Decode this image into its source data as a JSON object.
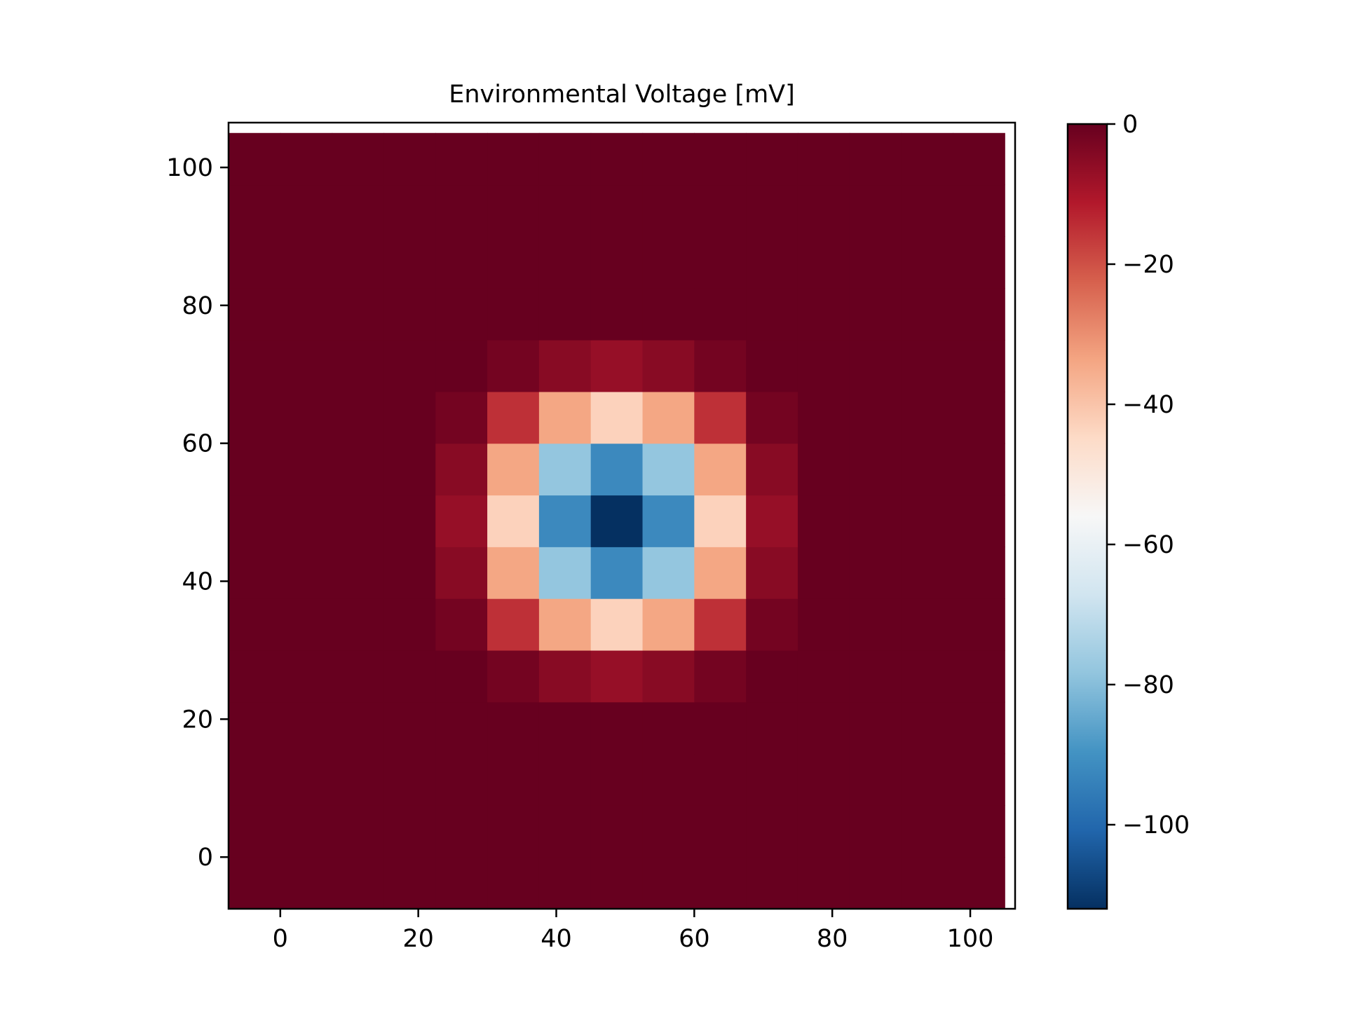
{
  "chart_data": {
    "type": "heatmap",
    "title": "Environmental Voltage [mV]",
    "xlabel": "",
    "ylabel": "",
    "xlim": [
      -7.5,
      106.5
    ],
    "ylim": [
      -7.5,
      106.5
    ],
    "x_ticks": [
      "0",
      "20",
      "40",
      "60",
      "80",
      "100"
    ],
    "y_ticks": [
      "0",
      "20",
      "40",
      "60",
      "80",
      "100"
    ],
    "x_tick_values": [
      0,
      20,
      40,
      60,
      80,
      100
    ],
    "y_tick_values": [
      0,
      20,
      40,
      60,
      80,
      100
    ],
    "cell_centers": [
      -3.75,
      3.75,
      11.25,
      18.75,
      26.25,
      33.75,
      41.25,
      48.75,
      56.25,
      63.75,
      71.25,
      78.75,
      86.25,
      93.75,
      101.25
    ],
    "cell_width": 7.5,
    "grid_rows_from_bottom": [
      [
        0,
        0,
        0,
        0,
        0,
        0,
        0,
        0,
        0,
        0,
        0,
        0,
        0,
        0,
        0
      ],
      [
        0,
        0,
        0,
        0,
        0,
        0,
        0,
        0,
        0,
        0,
        0,
        0,
        0,
        0,
        0
      ],
      [
        0,
        0,
        0,
        0,
        0,
        0,
        0,
        0,
        0,
        0,
        0,
        0,
        0,
        0,
        0
      ],
      [
        0,
        0,
        0,
        0,
        0,
        0,
        0,
        0,
        0,
        0,
        0,
        0,
        0,
        0,
        0
      ],
      [
        0,
        0,
        0,
        0,
        0,
        -2,
        -5,
        -7,
        -5,
        -2,
        0,
        0,
        0,
        0,
        0
      ],
      [
        0,
        0,
        0,
        0,
        -2,
        -15,
        -34,
        -43,
        -34,
        -15,
        -2,
        0,
        0,
        0,
        0
      ],
      [
        0,
        0,
        0,
        0,
        -5,
        -34,
        -78,
        -92,
        -78,
        -34,
        -5,
        0,
        0,
        0,
        0
      ],
      [
        0,
        0,
        0,
        0,
        -7,
        -43,
        -92,
        -112,
        -92,
        -43,
        -7,
        0,
        0,
        0,
        0
      ],
      [
        0,
        0,
        0,
        0,
        -5,
        -34,
        -78,
        -92,
        -78,
        -34,
        -5,
        0,
        0,
        0,
        0
      ],
      [
        0,
        0,
        0,
        0,
        -2,
        -15,
        -34,
        -43,
        -34,
        -15,
        -2,
        0,
        0,
        0,
        0
      ],
      [
        0,
        0,
        0,
        0,
        0,
        -2,
        -5,
        -7,
        -5,
        -2,
        0,
        0,
        0,
        0,
        0
      ],
      [
        0,
        0,
        0,
        0,
        0,
        0,
        0,
        0,
        0,
        0,
        0,
        0,
        0,
        0,
        0
      ],
      [
        0,
        0,
        0,
        0,
        0,
        0,
        0,
        0,
        0,
        0,
        0,
        0,
        0,
        0,
        0
      ],
      [
        0,
        0,
        0,
        0,
        0,
        0,
        0,
        0,
        0,
        0,
        0,
        0,
        0,
        0,
        0
      ],
      [
        0,
        0,
        0,
        0,
        0,
        0,
        0,
        0,
        0,
        0,
        0,
        0,
        0,
        0,
        0
      ]
    ],
    "colormap": "RdBu_r",
    "colorbar": {
      "vmin": -112,
      "vmax": 0,
      "ticks": [
        "0",
        "−20",
        "−40",
        "−60",
        "−80",
        "−100"
      ],
      "tick_values": [
        0,
        -20,
        -40,
        -60,
        -80,
        -100
      ]
    }
  }
}
